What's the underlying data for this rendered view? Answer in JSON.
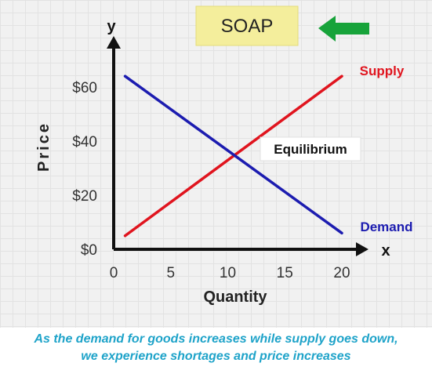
{
  "chart_data": {
    "type": "line",
    "title": "SOAP",
    "xlabel": "Quantity",
    "ylabel": "Price",
    "x_axis_letter": "x",
    "y_axis_letter": "y",
    "xlim": [
      0,
      22
    ],
    "ylim": [
      0,
      72
    ],
    "x_ticks": [
      "0",
      "5",
      "10",
      "15",
      "20"
    ],
    "x_tick_values": [
      0,
      5,
      10,
      15,
      20
    ],
    "y_ticks": [
      "$0",
      "$20",
      "$40",
      "$60"
    ],
    "y_tick_values": [
      0,
      20,
      40,
      60
    ],
    "grid": true,
    "series": [
      {
        "name": "Supply",
        "color": "#e0141e",
        "x": [
          1,
          20
        ],
        "y": [
          5,
          64
        ]
      },
      {
        "name": "Demand",
        "color": "#1c1cb0",
        "x": [
          1,
          20
        ],
        "y": [
          64,
          6
        ]
      }
    ],
    "annotations": [
      {
        "text": "Equilibrium",
        "x": 10,
        "y": 35
      }
    ],
    "title_arrow_color": "#17a33a",
    "title_bg_color": "#f4ee9c"
  },
  "caption": {
    "line1": "As the demand for goods increases while supply goes down,",
    "line2": "we experience shortages and price increases"
  }
}
